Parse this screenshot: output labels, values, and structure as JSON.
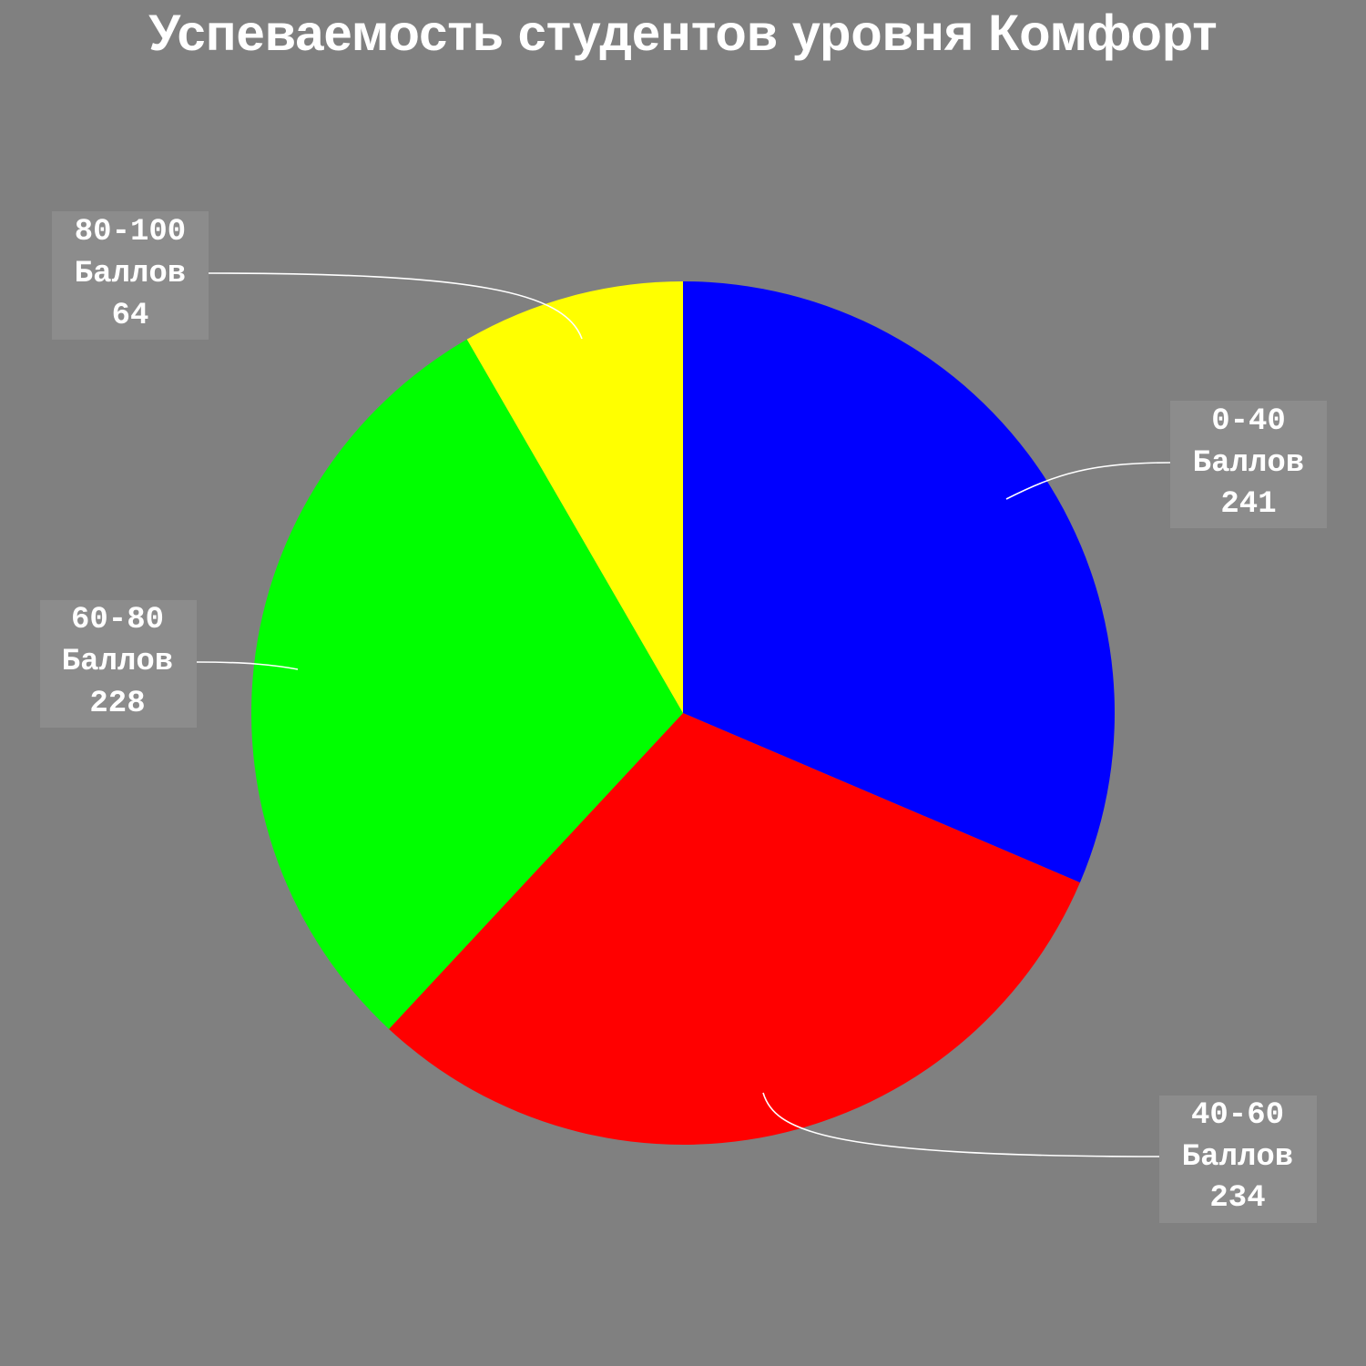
{
  "chart_data": {
    "type": "pie",
    "title": "Успеваемость студентов уровня Комфорт",
    "unit_word": "Баллов",
    "slices": [
      {
        "label": "0-40",
        "value": 241,
        "color": "#0000ff"
      },
      {
        "label": "40-60",
        "value": 234,
        "color": "#ff0000"
      },
      {
        "label": "60-80",
        "value": 228,
        "color": "#00ff00"
      },
      {
        "label": "80-100",
        "value": 64,
        "color": "#ffff00"
      }
    ],
    "start_angle": "12 o'clock",
    "direction": "clockwise"
  }
}
